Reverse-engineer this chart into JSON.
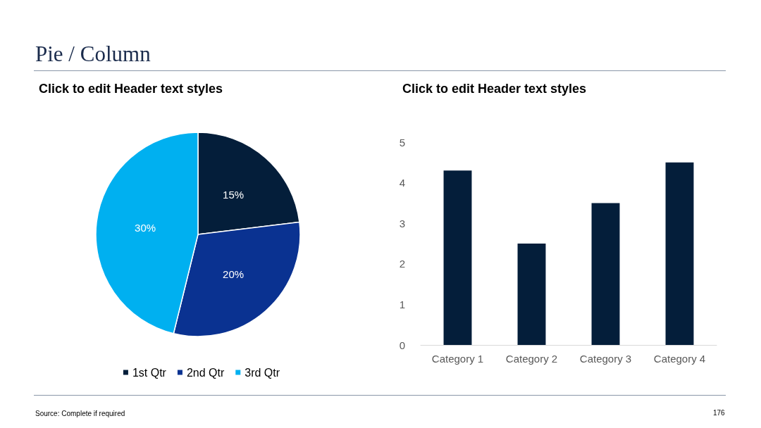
{
  "chart_data": [
    {
      "type": "pie",
      "title": "Click to edit Header text styles",
      "categories": [
        "1st Qtr",
        "2nd Qtr",
        "3rd Qtr"
      ],
      "values": [
        15,
        20,
        30
      ],
      "colors": [
        "#041e3a",
        "#0a3291",
        "#00b0f0"
      ],
      "value_labels": [
        "15%",
        "20%",
        "30%"
      ],
      "legend": "bottom",
      "annotations": [
        "Pie / Column",
        "Source: Complete if required"
      ]
    },
    {
      "type": "bar",
      "title": "Click to edit Header text styles",
      "categories": [
        "Category 1",
        "Category 2",
        "Category 3",
        "Category 4"
      ],
      "values": [
        4.3,
        2.5,
        3.5,
        4.5
      ],
      "color": "#041e3a",
      "ylim": [
        0,
        5
      ],
      "yticks": [
        0,
        1,
        2,
        3,
        4,
        5
      ],
      "grid": false,
      "annotations": [
        "176"
      ]
    }
  ]
}
